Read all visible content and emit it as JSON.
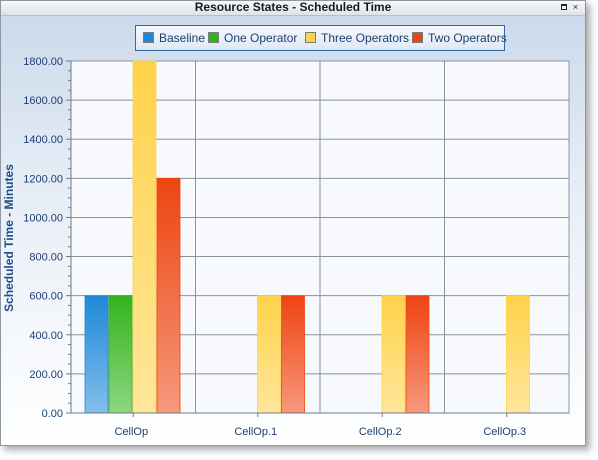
{
  "window": {
    "title": "Resource States - Scheduled Time",
    "restore_icon": "restore-icon",
    "close_icon": "close-icon",
    "close_glyph": "×"
  },
  "legend": {
    "items": [
      {
        "label": "Baseline",
        "color": "#1e88d8"
      },
      {
        "label": "One Operator",
        "color": "#33b41c"
      },
      {
        "label": "Three Operators",
        "color": "#ffd24a"
      },
      {
        "label": "Two Operators",
        "color": "#ee4411"
      }
    ]
  },
  "chart_data": {
    "type": "bar",
    "title": "Resource States - Scheduled Time",
    "xlabel": "",
    "ylabel": "Scheduled Time - Minutes",
    "categories": [
      "CellOp",
      "CellOp.1",
      "CellOp.2",
      "CellOp.3"
    ],
    "ylim": [
      0,
      1800
    ],
    "yticks": [
      0,
      200,
      400,
      600,
      800,
      1000,
      1200,
      1400,
      1600,
      1800
    ],
    "ytick_labels": [
      "0.00",
      "200.00",
      "400.00",
      "600.00",
      "800.00",
      "1000.00",
      "1200.00",
      "1400.00",
      "1600.00",
      "1800.00"
    ],
    "grid": true,
    "legend_position": "top-center",
    "series": [
      {
        "name": "Baseline",
        "color": "#1e88d8",
        "values": [
          600,
          null,
          null,
          null
        ]
      },
      {
        "name": "One Operator",
        "color": "#33b41c",
        "values": [
          600,
          null,
          null,
          null
        ]
      },
      {
        "name": "Three Operators",
        "color": "#ffd24a",
        "values": [
          1800,
          600,
          600,
          600
        ]
      },
      {
        "name": "Two Operators",
        "color": "#ee4411",
        "values": [
          1200,
          600,
          600,
          null
        ]
      }
    ]
  }
}
